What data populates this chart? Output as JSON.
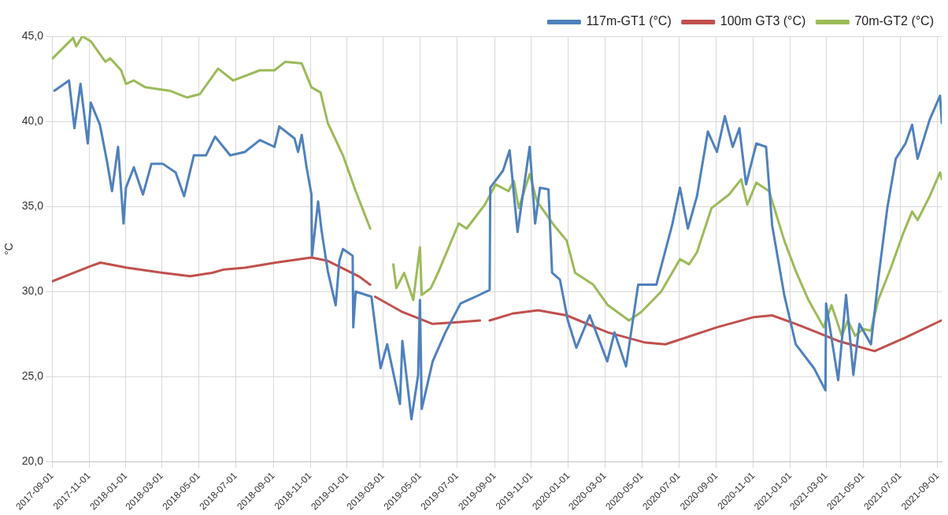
{
  "chart_data": {
    "type": "line",
    "ylabel": "°C",
    "legend": "top right",
    "grid": true,
    "marker": "none",
    "line_style": "solid",
    "xlim": [
      "2017-09-01",
      "2021-09-08"
    ],
    "xticks": [
      "2017-09-01",
      "2017-11-01",
      "2018-01-01",
      "2018-03-01",
      "2018-05-01",
      "2018-07-01",
      "2018-09-01",
      "2018-11-01",
      "2019-01-01",
      "2019-03-01",
      "2019-05-01",
      "2019-07-01",
      "2019-09-01",
      "2019-11-01",
      "2020-01-01",
      "2020-03-01",
      "2020-05-01",
      "2020-07-01",
      "2020-09-01",
      "2020-11-01",
      "2021-01-01",
      "2021-03-01",
      "2021-05-01",
      "2021-07-01",
      "2021-09-01"
    ],
    "ylim": [
      20,
      45
    ],
    "yticks": [
      {
        "value": 20,
        "label": "20,0"
      },
      {
        "value": 25,
        "label": "25,0"
      },
      {
        "value": 30,
        "label": "30,0"
      },
      {
        "value": 35,
        "label": "35,0"
      },
      {
        "value": 40,
        "label": "40,0"
      },
      {
        "value": 45,
        "label": "45,0"
      }
    ],
    "series": [
      {
        "name": "117m-GT1 (°C)",
        "color": "#4f81bd",
        "x": [
          "2017-09-05",
          "2017-09-29",
          "2017-10-08",
          "2017-10-18",
          "2017-10-30",
          "2017-11-04",
          "2017-11-19",
          "2017-12-01",
          "2017-12-09",
          "2017-12-19",
          "2017-12-28",
          "2018-01-01",
          "2018-01-14",
          "2018-01-29",
          "2018-02-12",
          "2018-03-03",
          "2018-03-24",
          "2018-04-07",
          "2018-04-23",
          "2018-05-13",
          "2018-05-28",
          "2018-06-22",
          "2018-07-16",
          "2018-08-10",
          "2018-09-03",
          "2018-09-11",
          "2018-10-06",
          "2018-10-12",
          "2018-10-18",
          "2018-10-26",
          "2018-11-03",
          "2018-11-04",
          "2018-11-14",
          "2018-11-20",
          "2018-11-30",
          "2018-12-13",
          "2018-12-19",
          "2018-12-25",
          "2019-01-02",
          "2019-01-10",
          "2019-01-11",
          "2019-01-15",
          "2019-02-10",
          "2019-02-25",
          "2019-03-08",
          "2019-03-29",
          "2019-04-02",
          "2019-04-17",
          "2019-04-28",
          "2019-05-01",
          "2019-05-04",
          "2019-05-22",
          "2019-06-12",
          "2019-07-07",
          "2019-08-01",
          "2019-08-24",
          "2019-08-25",
          "2019-09-15",
          "2019-09-26",
          "2019-10-09",
          "2019-10-29",
          "2019-11-07",
          "2019-11-15",
          "2019-11-29",
          "2019-12-05",
          "2019-12-18",
          "2019-12-31",
          "2020-01-14",
          "2020-02-05",
          "2020-03-05",
          "2020-03-17",
          "2020-04-05",
          "2020-04-25",
          "2020-05-25",
          "2020-06-20",
          "2020-07-03",
          "2020-07-16",
          "2020-07-31",
          "2020-08-18",
          "2020-09-02",
          "2020-09-15",
          "2020-09-28",
          "2020-10-09",
          "2020-10-20",
          "2020-11-06",
          "2020-11-22",
          "2020-12-02",
          "2020-12-22",
          "2021-01-10",
          "2021-02-09",
          "2021-02-28",
          "2021-03-01",
          "2021-03-21",
          "2021-04-03",
          "2021-04-15",
          "2021-04-25",
          "2021-05-14",
          "2021-05-26",
          "2021-06-10",
          "2021-06-24",
          "2021-07-10",
          "2021-07-21",
          "2021-07-30",
          "2021-08-19",
          "2021-09-05",
          "2021-09-08"
        ],
        "values": [
          41.8,
          42.4,
          39.6,
          42.2,
          38.7,
          41.1,
          39.8,
          37.6,
          35.9,
          38.5,
          34.0,
          36.1,
          37.3,
          35.7,
          37.5,
          37.5,
          37.0,
          35.6,
          38.0,
          38.0,
          39.1,
          38.0,
          38.2,
          38.9,
          38.5,
          39.7,
          39.0,
          38.2,
          39.2,
          37.3,
          35.7,
          32.1,
          35.3,
          33.5,
          31.2,
          29.2,
          31.8,
          32.5,
          32.3,
          32.1,
          27.9,
          30.0,
          29.7,
          25.5,
          26.9,
          23.4,
          27.1,
          22.5,
          25.1,
          29.5,
          23.1,
          25.9,
          27.6,
          29.3,
          29.7,
          30.1,
          36.1,
          37.1,
          38.3,
          33.5,
          38.5,
          34.0,
          36.1,
          36.0,
          31.1,
          30.7,
          28.3,
          26.7,
          28.6,
          25.9,
          27.6,
          25.6,
          30.4,
          30.4,
          33.9,
          36.1,
          33.7,
          35.6,
          39.4,
          38.2,
          40.3,
          38.5,
          39.6,
          36.3,
          38.7,
          38.5,
          33.9,
          29.8,
          26.9,
          25.5,
          24.2,
          29.3,
          24.8,
          29.8,
          25.1,
          28.1,
          26.9,
          30.7,
          34.9,
          37.8,
          38.7,
          39.8,
          37.8,
          40.1,
          41.5,
          39.9
        ]
      },
      {
        "name": "100m GT3 (°C)",
        "color": "#c0504d",
        "x": [
          "2017-09-01",
          "2017-11-04",
          "2017-11-20",
          "2018-01-03",
          "2018-03-03",
          "2018-04-17",
          "2018-05-23",
          "2018-06-12",
          "2018-07-16",
          "2018-09-05",
          "2018-11-03",
          "2018-11-30",
          "2019-01-20",
          "2019-02-08",
          "2019-02-12",
          "2019-02-16",
          "2019-04-02",
          "2019-05-22",
          "2019-07-01",
          "2019-08-08",
          "2019-08-15",
          "2019-08-24",
          "2019-09-30",
          "2019-11-12",
          "2019-12-29",
          "2020-03-06",
          "2020-05-07",
          "2020-06-09",
          "2020-09-02",
          "2020-11-02",
          "2020-12-02",
          "2021-01-10",
          "2021-03-21",
          "2021-05-20",
          "2021-07-10",
          "2021-09-07"
        ],
        "values": [
          30.6,
          31.5,
          31.7,
          31.4,
          31.1,
          30.9,
          31.1,
          31.3,
          31.4,
          31.7,
          32.0,
          31.8,
          30.9,
          30.4,
          null,
          29.7,
          28.8,
          28.1,
          28.2,
          28.3,
          null,
          28.3,
          28.7,
          28.9,
          28.6,
          27.6,
          27.0,
          26.9,
          27.9,
          28.5,
          28.6,
          28.1,
          27.1,
          26.5,
          27.3,
          28.3
        ]
      },
      {
        "name": "70m-GT2 (°C)",
        "color": "#9bbb59",
        "x": [
          "2017-09-02",
          "2017-10-06",
          "2017-10-11",
          "2017-10-21",
          "2017-11-04",
          "2017-11-28",
          "2017-12-06",
          "2017-12-24",
          "2018-01-01",
          "2018-01-14",
          "2018-02-02",
          "2018-03-14",
          "2018-04-12",
          "2018-05-03",
          "2018-06-02",
          "2018-06-27",
          "2018-08-10",
          "2018-09-03",
          "2018-09-21",
          "2018-10-18",
          "2018-11-03",
          "2018-11-18",
          "2018-11-30",
          "2018-12-25",
          "2019-01-15",
          "2019-02-08",
          "2019-02-20",
          "2019-03-18",
          "2019-03-23",
          "2019-04-05",
          "2019-04-20",
          "2019-05-01",
          "2019-05-04",
          "2019-05-19",
          "2019-06-01",
          "2019-07-04",
          "2019-07-17",
          "2019-08-16",
          "2019-09-03",
          "2019-09-24",
          "2019-10-03",
          "2019-10-11",
          "2019-10-29",
          "2019-11-10",
          "2019-12-08",
          "2019-12-29",
          "2020-01-12",
          "2020-02-11",
          "2020-03-06",
          "2020-04-10",
          "2020-04-30",
          "2020-06-02",
          "2020-07-03",
          "2020-07-18",
          "2020-07-31",
          "2020-08-24",
          "2020-09-22",
          "2020-10-12",
          "2020-10-22",
          "2020-11-06",
          "2020-11-27",
          "2020-12-22",
          "2021-01-10",
          "2021-01-31",
          "2021-02-25",
          "2021-03-10",
          "2021-03-27",
          "2021-04-06",
          "2021-04-18",
          "2021-05-01",
          "2021-05-14",
          "2021-05-26",
          "2021-06-16",
          "2021-07-05",
          "2021-07-21",
          "2021-07-30",
          "2021-08-19",
          "2021-09-05",
          "2021-09-08"
        ],
        "values": [
          43.7,
          44.9,
          44.4,
          45.0,
          44.7,
          43.5,
          43.7,
          43.0,
          42.2,
          42.4,
          42.0,
          41.8,
          41.4,
          41.6,
          43.1,
          42.4,
          43.0,
          43.0,
          43.5,
          43.4,
          42.0,
          41.7,
          39.9,
          38.0,
          35.9,
          33.7,
          null,
          31.6,
          30.2,
          31.1,
          29.5,
          32.6,
          29.8,
          30.2,
          31.2,
          34.0,
          33.7,
          35.1,
          36.3,
          35.9,
          36.5,
          34.9,
          36.9,
          35.3,
          33.9,
          33.0,
          31.1,
          30.4,
          29.2,
          28.3,
          28.8,
          30.0,
          31.9,
          31.6,
          32.3,
          34.9,
          35.7,
          36.6,
          35.1,
          36.4,
          35.9,
          33.0,
          31.2,
          29.5,
          27.9,
          29.2,
          27.4,
          28.3,
          27.4,
          27.8,
          27.7,
          29.5,
          31.4,
          33.3,
          34.7,
          34.2,
          35.6,
          37.0,
          36.6
        ]
      }
    ]
  }
}
